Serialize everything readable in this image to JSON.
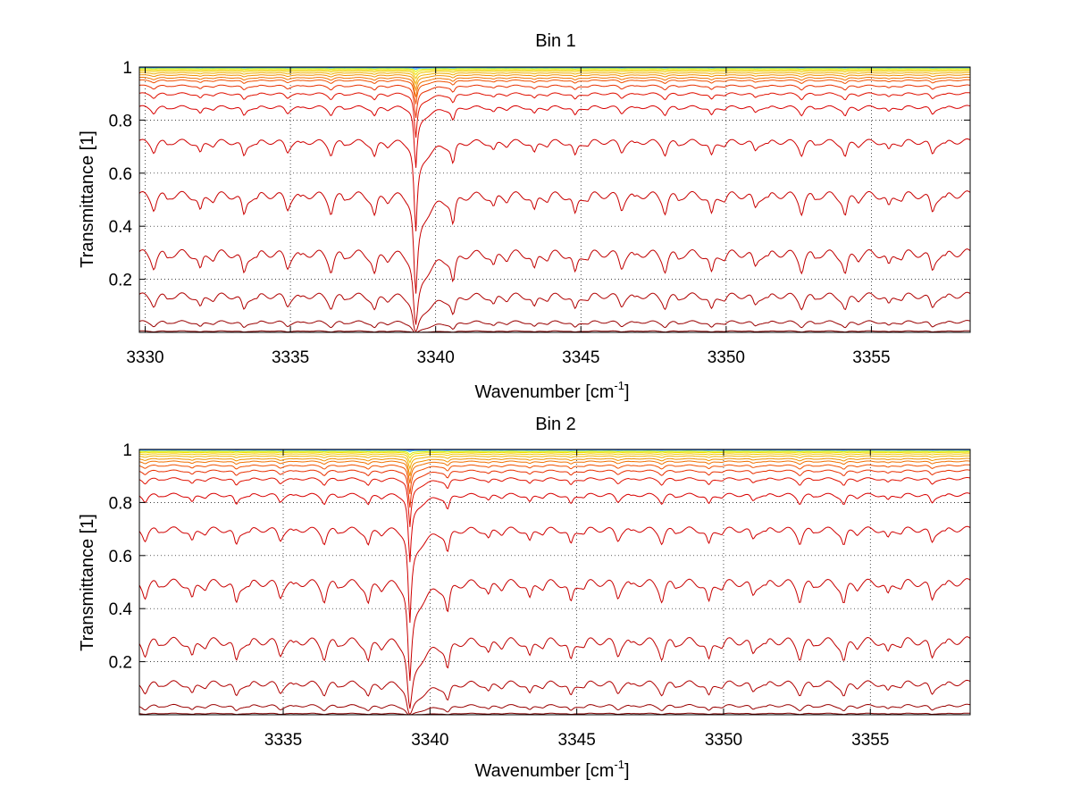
{
  "chart_data": [
    {
      "type": "line",
      "title": "Bin 1",
      "xlabel_base": "Wavenumber [cm",
      "xlabel_sup": "-1",
      "xlabel_close": "]",
      "ylabel": "Transmittance [1]",
      "xlim": [
        3329.8,
        3358.4
      ],
      "ylim": [
        0.0,
        1.0
      ],
      "xticks": [
        3330,
        3335,
        3340,
        3345,
        3350,
        3355
      ],
      "xtick_labels": [
        "3330",
        "3335",
        "3340",
        "3345",
        "3350",
        "3355"
      ],
      "yticks": [
        0.2,
        0.4,
        0.6,
        0.8,
        1.0
      ],
      "ytick_labels": [
        "0.2",
        "0.4",
        "0.6",
        "0.8",
        "1"
      ],
      "grid": true,
      "series_levels": [
        0.005,
        0.04,
        0.14,
        0.3,
        0.52,
        0.72,
        0.85,
        0.9,
        0.93,
        0.95,
        0.96,
        0.97,
        0.978,
        0.985,
        0.99,
        0.994,
        0.997,
        0.999
      ],
      "series_colors": [
        "#800000",
        "#990000",
        "#b00000",
        "#c00000",
        "#c80000",
        "#d00000",
        "#d80000",
        "#e01000",
        "#e83000",
        "#f05000",
        "#f07000",
        "#f09000",
        "#f0b000",
        "#f0c800",
        "#f0e000",
        "#d8f000",
        "#40c0e0",
        "#0040ff"
      ],
      "dip_positions": [
        3330.3,
        3331.9,
        3333.4,
        3334.9,
        3336.4,
        3337.9,
        3342.0,
        3343.4,
        3344.8,
        3346.4,
        3347.9,
        3349.5,
        3351.0,
        3352.6,
        3354.1,
        3355.6,
        3357.1
      ],
      "strong_band": 3339.3
    },
    {
      "type": "line",
      "title": "Bin 2",
      "xlabel_base": "Wavenumber [cm",
      "xlabel_sup": "-1",
      "xlabel_close": "]",
      "ylabel": "Transmittance [1]",
      "xlim": [
        3330.1,
        3358.4
      ],
      "ylim": [
        0.0,
        1.0
      ],
      "xticks": [
        3335,
        3340,
        3345,
        3350,
        3355
      ],
      "xtick_labels": [
        "3335",
        "3340",
        "3345",
        "3350",
        "3355"
      ],
      "yticks": [
        0.2,
        0.4,
        0.6,
        0.8,
        1.0
      ],
      "ytick_labels": [
        "0.2",
        "0.4",
        "0.6",
        "0.8",
        "1"
      ],
      "grid": true,
      "series_levels": [
        0.005,
        0.035,
        0.12,
        0.28,
        0.5,
        0.7,
        0.83,
        0.89,
        0.92,
        0.94,
        0.955,
        0.965,
        0.975,
        0.983,
        0.989,
        0.993,
        0.997,
        0.999
      ],
      "series_colors": [
        "#800000",
        "#990000",
        "#b00000",
        "#c00000",
        "#c80000",
        "#d00000",
        "#d80000",
        "#e01000",
        "#e83000",
        "#f05000",
        "#f07000",
        "#f09000",
        "#f0b000",
        "#f0c800",
        "#f0e000",
        "#d8f000",
        "#40c0e0",
        "#0040ff"
      ],
      "dip_positions": [
        3330.3,
        3331.9,
        3333.4,
        3334.9,
        3336.4,
        3337.9,
        3342.0,
        3343.4,
        3344.8,
        3346.4,
        3347.9,
        3349.5,
        3351.0,
        3352.6,
        3354.1,
        3355.6,
        3357.1
      ],
      "strong_band": 3339.3
    }
  ]
}
